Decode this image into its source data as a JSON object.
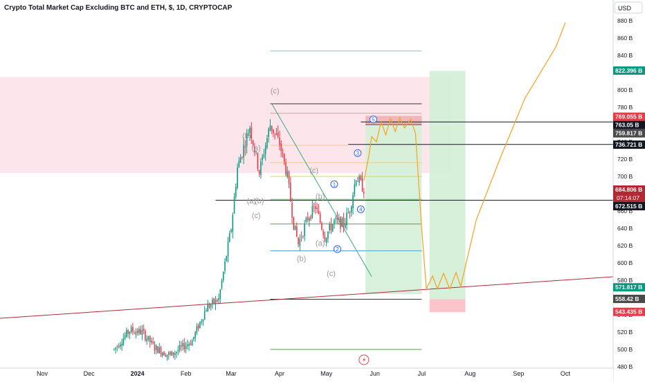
{
  "chart_data": {
    "type": "candlestick",
    "title": "Crypto Total Market Cap Excluding BTC and ETH, $, 1D, CRYPTOCAP",
    "currency": "USD",
    "x_ticks": [
      "Nov",
      "Dec",
      "2024",
      "Feb",
      "Mar",
      "Apr",
      "May",
      "Jun",
      "Jul",
      "Aug",
      "Sep",
      "Oct"
    ],
    "x_tick_dates": [
      "2023-11-01",
      "2023-12-01",
      "2024-01-01",
      "2024-02-01",
      "2024-03-01",
      "2024-04-01",
      "2024-05-01",
      "2024-06-01",
      "2024-07-01",
      "2024-08-01",
      "2024-09-01",
      "2024-10-01"
    ],
    "y_ticks": [
      "480 B",
      "500 B",
      "520 B",
      "540 B",
      "560 B",
      "580 B",
      "600 B",
      "620 B",
      "640 B",
      "660 B",
      "680 B",
      "700 B",
      "720 B",
      "740 B",
      "760 B",
      "780 B",
      "800 B",
      "820 B",
      "840 B",
      "860 B",
      "880 B"
    ],
    "y_range": [
      480,
      880
    ],
    "price_labels": [
      {
        "value": 822.396,
        "text": "822.396 B",
        "color": "#089981"
      },
      {
        "value": 769.055,
        "text": "769.055 B",
        "color": "#f23645"
      },
      {
        "value": 763.05,
        "text": "763.05 B",
        "color": "#131722"
      },
      {
        "value": 759.817,
        "text": "759.817 B",
        "color": "#4a4a4a"
      },
      {
        "value": 736.721,
        "text": "736.721 B",
        "color": "#131722"
      },
      {
        "value": 684.806,
        "text": "684.806 B",
        "color": "#b22833"
      },
      {
        "value": 672.515,
        "text": "672.515 B",
        "color": "#131722"
      },
      {
        "value": 571.817,
        "text": "571.817 B",
        "color": "#089981"
      },
      {
        "value": 558.42,
        "text": "558.42 B",
        "color": "#4a4a4a"
      },
      {
        "value": 543.435,
        "text": "543.435 B",
        "color": "#f23645"
      }
    ],
    "countdown": "07:14:07",
    "wave_labels": [
      {
        "text": "(c)",
        "date": "2024-03-29",
        "y": 796
      },
      {
        "text": "(b)",
        "date": "2024-03-11",
        "y": 744
      },
      {
        "text": "(a)",
        "date": "2024-03-17",
        "y": 730
      },
      {
        "text": "(a)",
        "date": "2024-03-14",
        "y": 669
      },
      {
        "text": "(b)",
        "date": "2024-03-19",
        "y": 669
      },
      {
        "text": "(c)",
        "date": "2024-03-17",
        "y": 652
      },
      {
        "text": "(c)",
        "date": "2024-04-23",
        "y": 704
      },
      {
        "text": "(b)",
        "date": "2024-04-27",
        "y": 674
      },
      {
        "text": "(a)",
        "date": "2024-04-27",
        "y": 620
      },
      {
        "text": "(b)",
        "date": "2024-04-15",
        "y": 602
      },
      {
        "text": "(c)",
        "date": "2024-05-04",
        "y": 585
      }
    ],
    "wave_circles": [
      {
        "text": "1",
        "date": "2024-05-06",
        "y": 691
      },
      {
        "text": "2",
        "date": "2024-05-08",
        "y": 616
      },
      {
        "text": "3",
        "date": "2024-05-21",
        "y": 727
      },
      {
        "text": "4",
        "date": "2024-05-23",
        "y": 662
      },
      {
        "text": "5",
        "date": "2024-05-31",
        "y": 766
      }
    ],
    "indicator_icon": "lightning-icon",
    "colors": {
      "up": "#089981",
      "down": "#f23645",
      "projection": "#f7a21b",
      "trendline": "#b22833",
      "zone_red": "#fbe0e7",
      "zone_green": "#d4efd8"
    }
  }
}
